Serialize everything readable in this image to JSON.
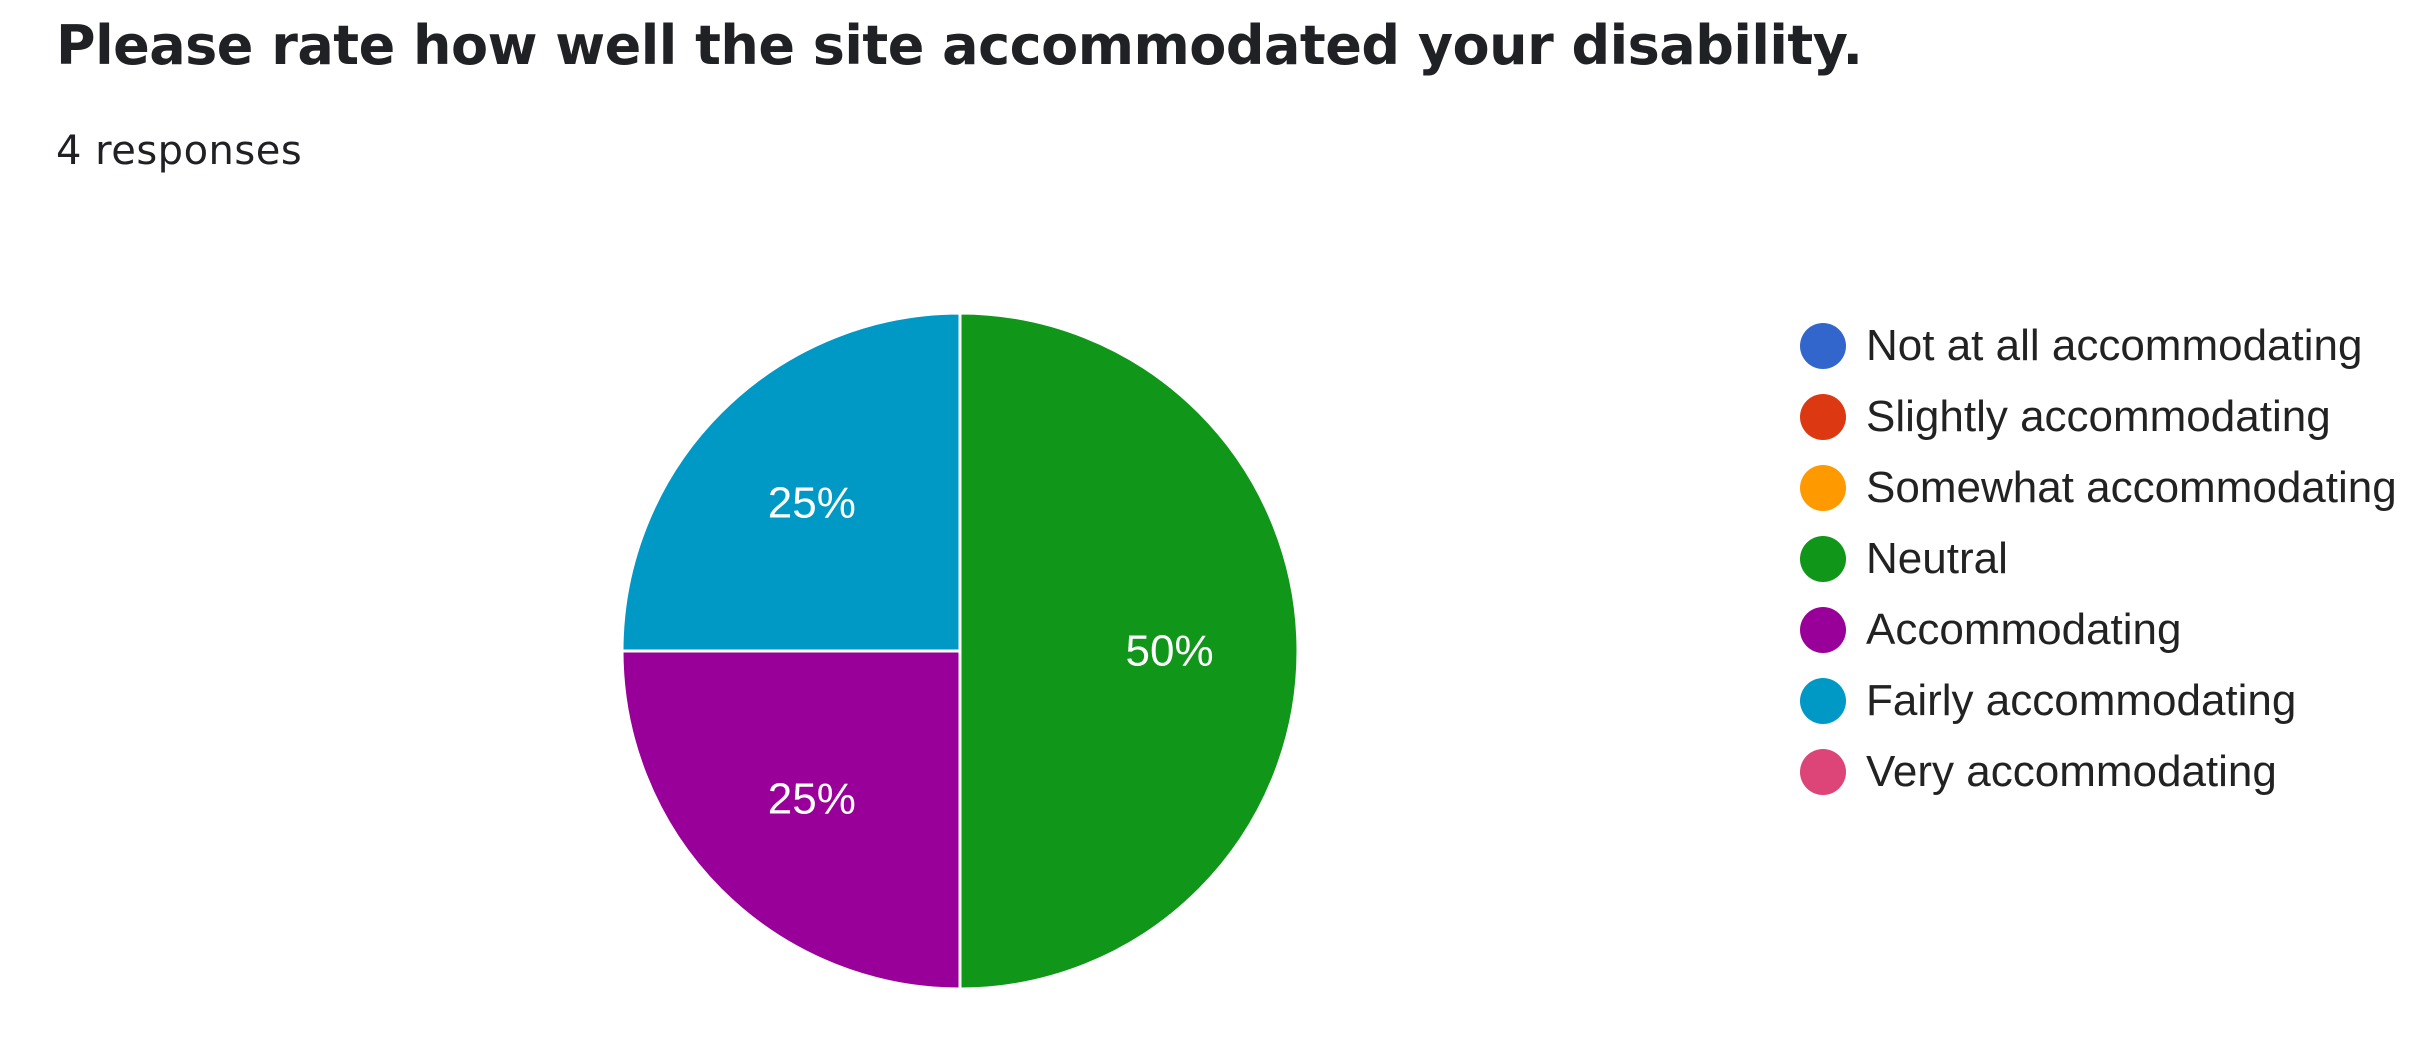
{
  "header": {
    "title": "Please rate how well the site accommodated your disability.",
    "responses": "4 responses"
  },
  "chart_data": {
    "type": "pie",
    "categories": [
      "Not at all accommodating",
      "Slightly accommodating",
      "Somewhat accommodating",
      "Neutral",
      "Accommodating",
      "Fairly accommodating",
      "Very accommodating"
    ],
    "values": [
      0,
      0,
      0,
      2,
      1,
      1,
      0
    ],
    "percent_labels": [
      "0%",
      "0%",
      "0%",
      "50%",
      "25%",
      "25%",
      "0%"
    ],
    "colors": [
      "#3366cc",
      "#dc3912",
      "#ff9900",
      "#109618",
      "#990099",
      "#0099c6",
      "#dd4477"
    ],
    "legend_position": "right"
  }
}
